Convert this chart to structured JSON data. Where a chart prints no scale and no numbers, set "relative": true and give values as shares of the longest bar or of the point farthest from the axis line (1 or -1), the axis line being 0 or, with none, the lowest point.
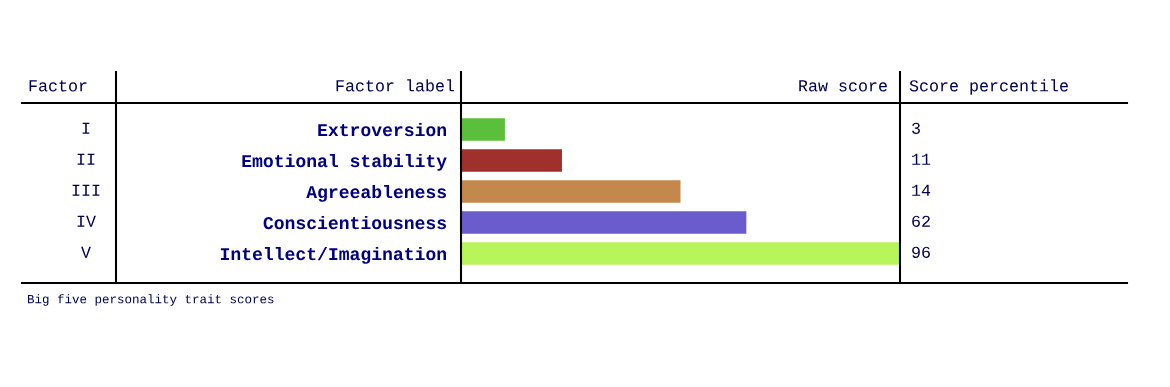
{
  "chart_data": {
    "type": "bar",
    "orientation": "horizontal",
    "relative": true,
    "categories": [
      "Extroversion",
      "Emotional stability",
      "Agreeableness",
      "Conscientiousness",
      "Intellect/Imagination"
    ],
    "values": [
      0.1,
      0.23,
      0.5,
      0.65,
      1
    ],
    "colors": [
      "#5cbf3c",
      "#a0302c",
      "#c4884c",
      "#6a5ccc",
      "#b8f55a"
    ],
    "ylabel": "Factor label",
    "xlabel": "Raw score",
    "y2label": "Score percentile",
    "annotations": [
      "Factor",
      "I",
      "II",
      "III",
      "IV",
      "V",
      "3",
      "11",
      "14",
      "62",
      "96",
      "Big five personality trait scores"
    ],
    "grid": false
  }
}
